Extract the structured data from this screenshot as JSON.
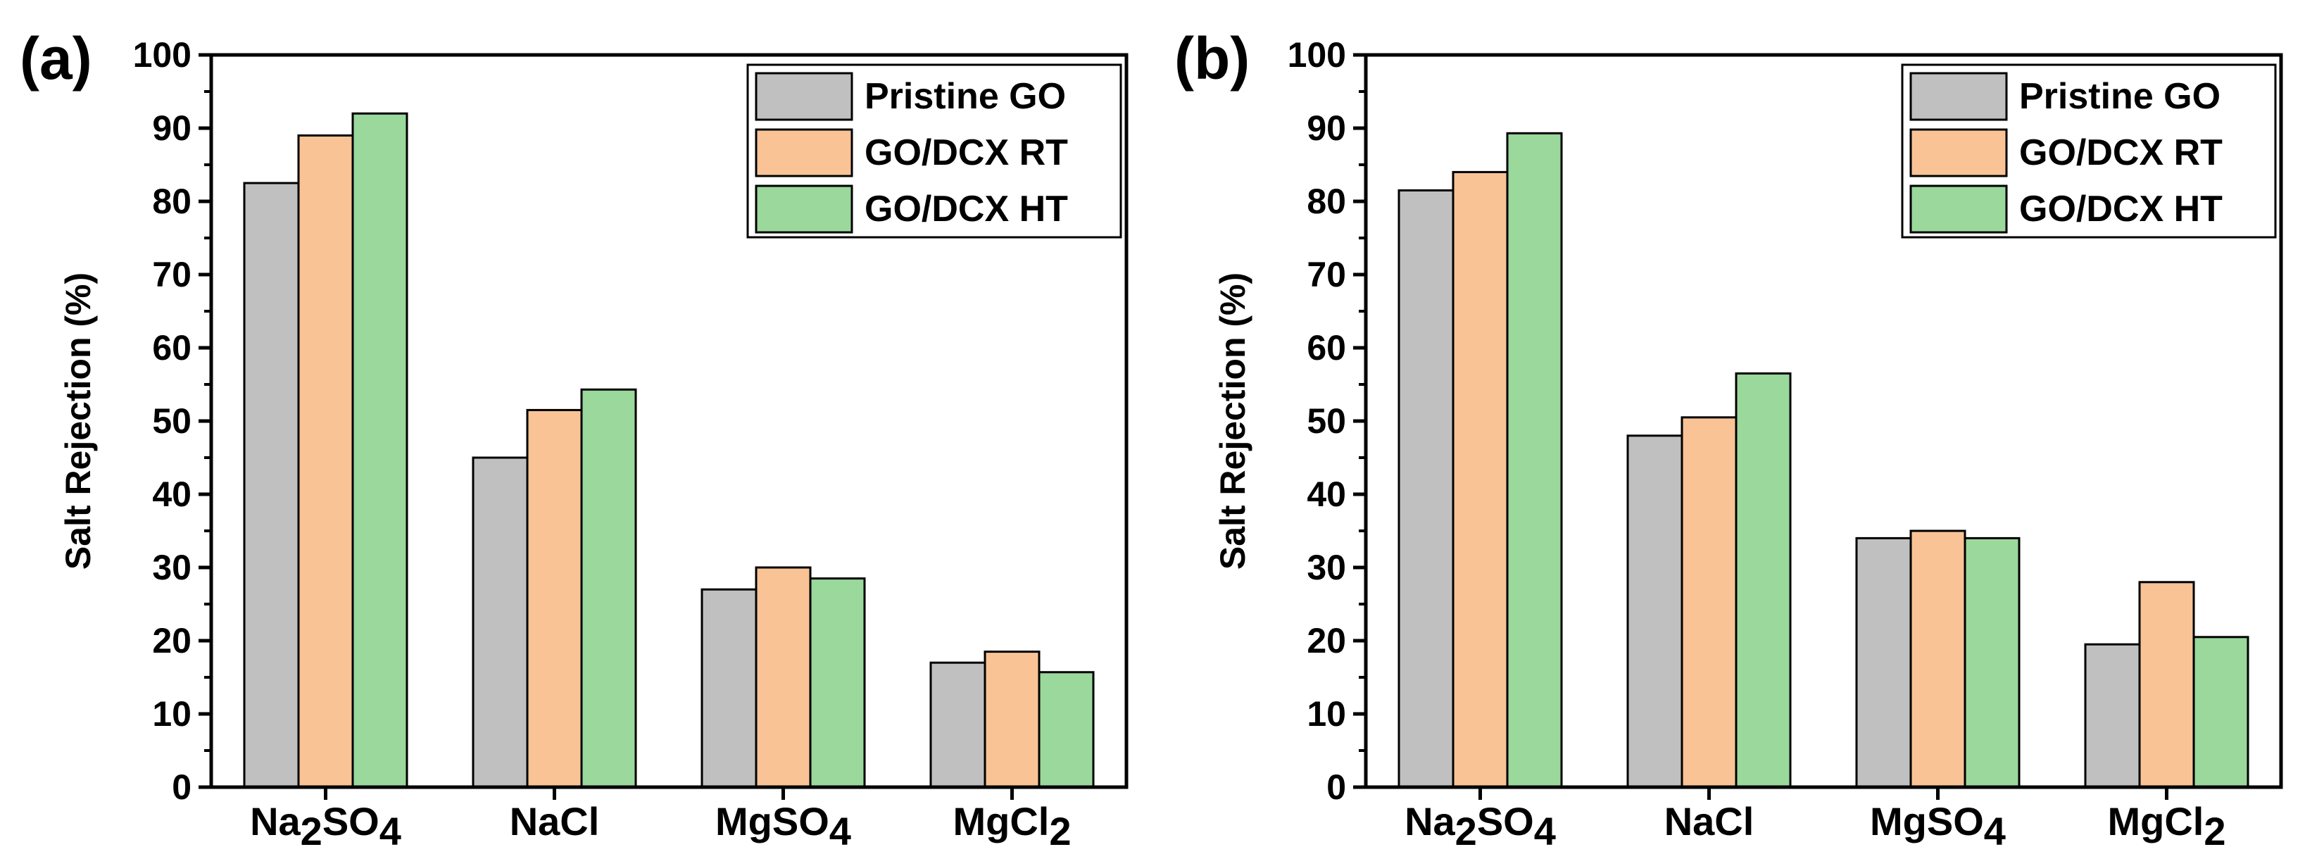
{
  "chart_data": [
    {
      "panel_label": "(a)",
      "type": "bar",
      "title": "",
      "xlabel": "",
      "ylabel": "Salt Rejection (%)",
      "ylim": [
        0,
        100
      ],
      "yticks": [
        "0",
        "10",
        "20",
        "30",
        "40",
        "50",
        "60",
        "70",
        "80",
        "90",
        "100"
      ],
      "categories": [
        {
          "base": "Na",
          "sub1": "2",
          "mid": "SO",
          "sub2": "4"
        },
        {
          "base": "NaCl",
          "sub1": "",
          "mid": "",
          "sub2": ""
        },
        {
          "base": "MgSO",
          "sub1": "4",
          "mid": "",
          "sub2": ""
        },
        {
          "base": "MgCl",
          "sub1": "2",
          "mid": "",
          "sub2": ""
        }
      ],
      "category_names": [
        "Na2SO4",
        "NaCl",
        "MgSO4",
        "MgCl2"
      ],
      "series": [
        {
          "name": "Pristine GO",
          "color": "#c0c0c0",
          "values": [
            82.5,
            45,
            27,
            17
          ]
        },
        {
          "name": "GO/DCX RT",
          "color": "#f9c396",
          "values": [
            89,
            51.5,
            30,
            18.5
          ]
        },
        {
          "name": "GO/DCX HT",
          "color": "#9ad89b",
          "values": [
            92,
            54.3,
            28.5,
            15.7
          ]
        }
      ],
      "legend_position": "top-right",
      "grid": false
    },
    {
      "panel_label": "(b)",
      "type": "bar",
      "title": "",
      "xlabel": "",
      "ylabel": "Salt Rejection (%)",
      "ylim": [
        0,
        100
      ],
      "yticks": [
        "0",
        "10",
        "20",
        "30",
        "40",
        "50",
        "60",
        "70",
        "80",
        "90",
        "100"
      ],
      "categories": [
        {
          "base": "Na",
          "sub1": "2",
          "mid": "SO",
          "sub2": "4"
        },
        {
          "base": "NaCl",
          "sub1": "",
          "mid": "",
          "sub2": ""
        },
        {
          "base": "MgSO",
          "sub1": "4",
          "mid": "",
          "sub2": ""
        },
        {
          "base": "MgCl",
          "sub1": "2",
          "mid": "",
          "sub2": ""
        }
      ],
      "category_names": [
        "Na2SO4",
        "NaCl",
        "MgSO4",
        "MgCl2"
      ],
      "series": [
        {
          "name": "Pristine GO",
          "color": "#c0c0c0",
          "values": [
            81.5,
            48,
            34,
            19.5
          ]
        },
        {
          "name": "GO/DCX RT",
          "color": "#f9c396",
          "values": [
            84,
            50.5,
            35,
            28
          ]
        },
        {
          "name": "GO/DCX HT",
          "color": "#9ad89b",
          "values": [
            89.3,
            56.5,
            34,
            20.5
          ]
        }
      ],
      "legend_position": "top-right",
      "grid": false
    }
  ]
}
